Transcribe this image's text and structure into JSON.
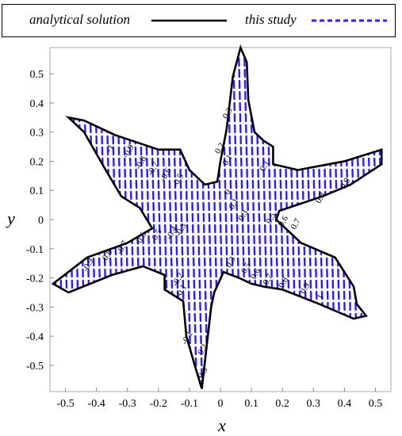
{
  "legend": {
    "analytical_label": "analytical solution",
    "study_label": "this study",
    "analytical_color": "#000000",
    "study_color": "#2a1cff"
  },
  "chart_data": {
    "type": "contour",
    "xlabel": "x",
    "ylabel": "y",
    "xlim": [
      -0.55,
      0.55
    ],
    "ylim": [
      -0.59,
      0.59
    ],
    "xticks": [
      -0.5,
      -0.4,
      -0.3,
      -0.2,
      -0.1,
      0,
      0.1,
      0.2,
      0.3,
      0.4,
      0.5
    ],
    "yticks": [
      -0.5,
      -0.4,
      -0.3,
      -0.2,
      -0.1,
      0,
      0.1,
      0.2,
      0.3,
      0.4,
      0.5
    ],
    "grid": false,
    "legend_position": "top",
    "series": [
      {
        "name": "analytical solution",
        "style": "solid",
        "color": "#000000"
      },
      {
        "name": "this study",
        "style": "dashed",
        "color": "#2a1cff"
      }
    ],
    "star_outline_points": [
      [
        0.065,
        0.59
      ],
      [
        0.085,
        0.54
      ],
      [
        0.09,
        0.41
      ],
      [
        0.11,
        0.3
      ],
      [
        0.14,
        0.27
      ],
      [
        0.17,
        0.25
      ],
      [
        0.17,
        0.19
      ],
      [
        0.25,
        0.17
      ],
      [
        0.4,
        0.2
      ],
      [
        0.52,
        0.24
      ],
      [
        0.52,
        0.19
      ],
      [
        0.42,
        0.12
      ],
      [
        0.33,
        0.08
      ],
      [
        0.19,
        0.03
      ],
      [
        0.18,
        0.0
      ],
      [
        0.26,
        -0.08
      ],
      [
        0.37,
        -0.13
      ],
      [
        0.43,
        -0.23
      ],
      [
        0.44,
        -0.29
      ],
      [
        0.47,
        -0.33
      ],
      [
        0.43,
        -0.34
      ],
      [
        0.32,
        -0.29
      ],
      [
        0.2,
        -0.24
      ],
      [
        0.14,
        -0.23
      ],
      [
        0.1,
        -0.22
      ],
      [
        0.06,
        -0.2
      ],
      [
        0.01,
        -0.18
      ],
      [
        -0.02,
        -0.25
      ],
      [
        -0.03,
        -0.3
      ],
      [
        -0.06,
        -0.58
      ],
      [
        -0.08,
        -0.51
      ],
      [
        -0.11,
        -0.4
      ],
      [
        -0.12,
        -0.28
      ],
      [
        -0.15,
        -0.26
      ],
      [
        -0.18,
        -0.24
      ],
      [
        -0.18,
        -0.19
      ],
      [
        -0.25,
        -0.16
      ],
      [
        -0.35,
        -0.19
      ],
      [
        -0.49,
        -0.25
      ],
      [
        -0.54,
        -0.22
      ],
      [
        -0.43,
        -0.13
      ],
      [
        -0.3,
        -0.08
      ],
      [
        -0.22,
        -0.03
      ],
      [
        -0.26,
        0.04
      ],
      [
        -0.32,
        0.08
      ],
      [
        -0.37,
        0.17
      ],
      [
        -0.44,
        0.3
      ],
      [
        -0.49,
        0.35
      ],
      [
        -0.44,
        0.34
      ],
      [
        -0.34,
        0.29
      ],
      [
        -0.2,
        0.24
      ],
      [
        -0.13,
        0.24
      ],
      [
        -0.1,
        0.17
      ],
      [
        -0.05,
        0.12
      ],
      [
        -0.01,
        0.13
      ],
      [
        0.0,
        0.2
      ],
      [
        0.02,
        0.31
      ],
      [
        0.04,
        0.49
      ]
    ],
    "contour_labels": [
      {
        "text": "0.3",
        "x": 0.03,
        "y": 0.36
      },
      {
        "text": "0.2",
        "x": 0.005,
        "y": 0.24
      },
      {
        "text": "0.1",
        "x": 0.03,
        "y": 0.2
      },
      {
        "text": "0.1",
        "x": 0.15,
        "y": 0.18
      },
      {
        "text": "0",
        "x": 0.03,
        "y": 0.09
      },
      {
        "text": "0.1",
        "x": 0.05,
        "y": 0.05
      },
      {
        "text": "-1",
        "x": -0.35,
        "y": 0.24
      },
      {
        "text": "-0.9",
        "x": -0.29,
        "y": 0.23
      },
      {
        "text": "-0.8",
        "x": -0.25,
        "y": 0.19
      },
      {
        "text": "-0.7",
        "x": -0.21,
        "y": 0.17
      },
      {
        "text": "-0.6",
        "x": -0.17,
        "y": 0.15
      },
      {
        "text": "-0.5",
        "x": -0.13,
        "y": 0.13
      },
      {
        "text": "-0.9",
        "x": -0.42,
        "y": -0.16
      },
      {
        "text": "-0.8",
        "x": -0.36,
        "y": -0.13
      },
      {
        "text": "-0.7",
        "x": -0.31,
        "y": -0.1
      },
      {
        "text": "-0.6",
        "x": -0.25,
        "y": -0.07
      },
      {
        "text": "-0.5",
        "x": -0.2,
        "y": -0.06
      },
      {
        "text": "-0.4",
        "x": -0.15,
        "y": -0.05
      },
      {
        "text": "-0.3",
        "x": -0.12,
        "y": -0.04
      },
      {
        "text": "0.3",
        "x": 0.08,
        "y": 0.01
      },
      {
        "text": "0.5",
        "x": 0.17,
        "y": 0.0
      },
      {
        "text": "0.6",
        "x": 0.21,
        "y": -0.01
      },
      {
        "text": "0.7",
        "x": 0.25,
        "y": -0.02
      },
      {
        "text": "0.8",
        "x": 0.33,
        "y": 0.07
      },
      {
        "text": "0.9",
        "x": 0.41,
        "y": 0.12
      },
      {
        "text": "0.3",
        "x": 0.04,
        "y": -0.15
      },
      {
        "text": "0.5",
        "x": 0.09,
        "y": -0.17
      },
      {
        "text": "0.6",
        "x": 0.12,
        "y": -0.19
      },
      {
        "text": "0.7",
        "x": 0.16,
        "y": -0.21
      },
      {
        "text": "0.8",
        "x": 0.21,
        "y": -0.22
      },
      {
        "text": "0.9",
        "x": 0.28,
        "y": -0.24
      },
      {
        "text": "1",
        "x": 0.33,
        "y": -0.27
      },
      {
        "text": "-0.2",
        "x": -0.13,
        "y": -0.21
      },
      {
        "text": "-0.1",
        "x": -0.12,
        "y": -0.25
      },
      {
        "text": "-0.1",
        "x": -0.1,
        "y": -0.41
      },
      {
        "text": "0.2",
        "x": -0.05,
        "y": -0.45
      },
      {
        "text": "0.3",
        "x": -0.05,
        "y": -0.53
      }
    ]
  }
}
